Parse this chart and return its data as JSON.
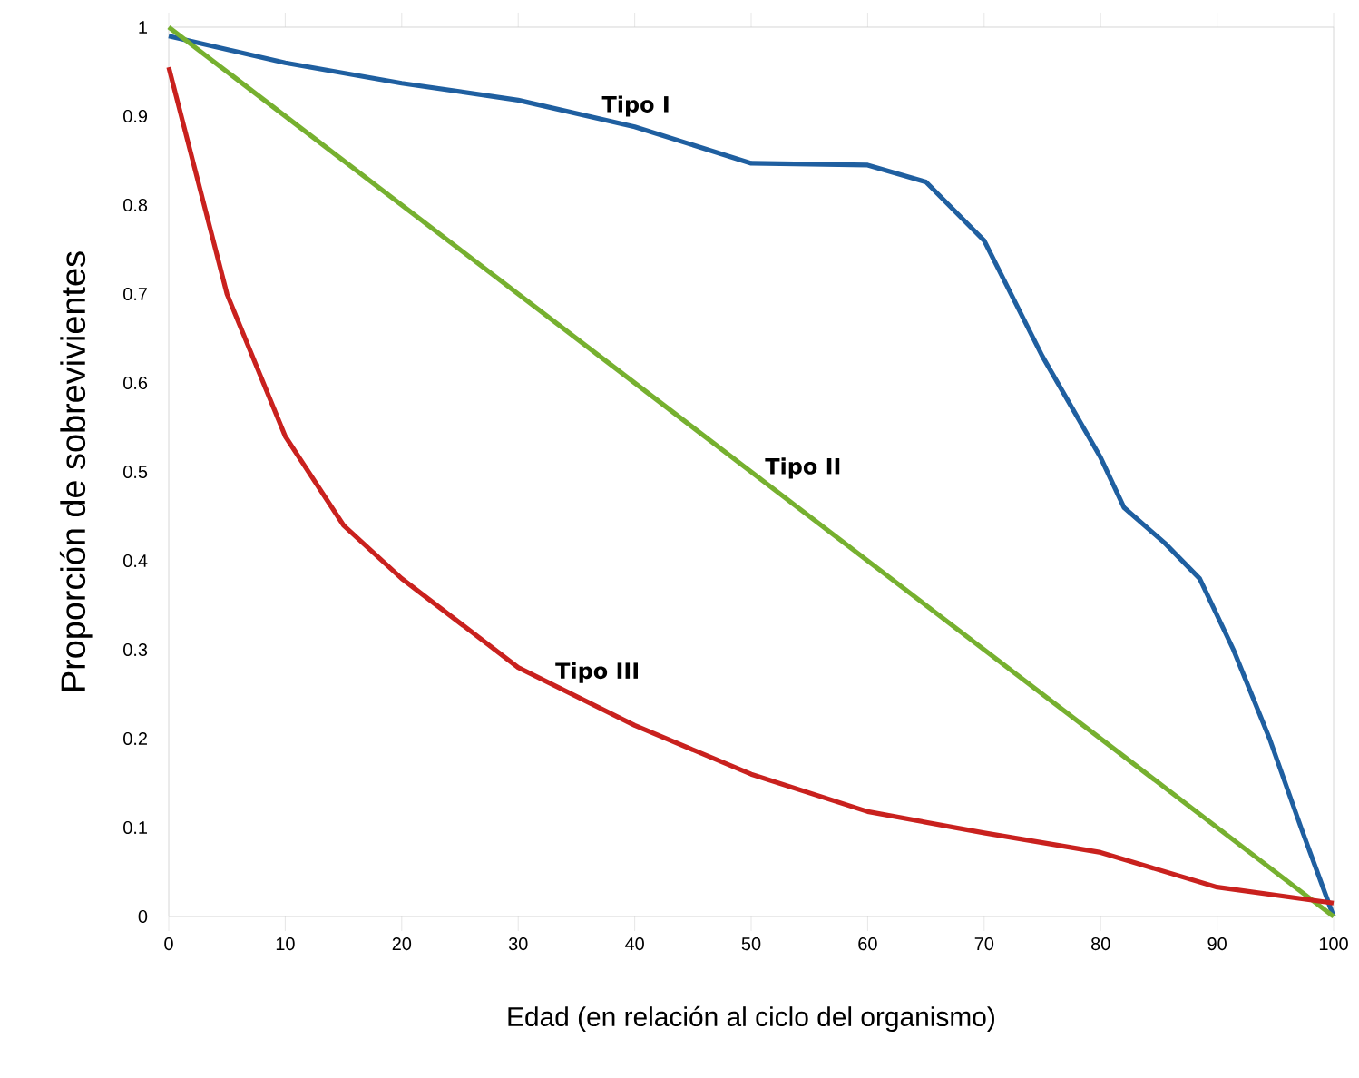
{
  "chart_data": {
    "type": "line",
    "xlabel": "Edad (en relación al ciclo del organismo)",
    "ylabel": "Proporción de sobrevivientes",
    "xlim": [
      0,
      100
    ],
    "ylim": [
      0,
      1
    ],
    "xticks": [
      0,
      10,
      20,
      30,
      40,
      50,
      60,
      70,
      80,
      90,
      100
    ],
    "yticks": [
      0,
      0.1,
      0.2,
      0.3,
      0.4,
      0.5,
      0.6,
      0.7,
      0.8,
      0.9,
      1
    ],
    "grid": false,
    "marker": "none",
    "line_style": "solid",
    "series": [
      {
        "color": "#1f5fa0",
        "x": [
          0,
          10,
          20,
          30,
          40,
          50,
          60,
          65,
          70,
          75,
          80,
          82,
          85.5,
          88.5,
          91.4,
          94.5,
          97.2,
          100
        ],
        "values": [
          0.99,
          0.96,
          0.937,
          0.918,
          0.888,
          0.847,
          0.845,
          0.826,
          0.76,
          0.63,
          0.516,
          0.46,
          0.42,
          0.38,
          0.3,
          0.2,
          0.1,
          0
        ]
      },
      {
        "color": "#76b02f",
        "x": [
          0,
          100
        ],
        "values": [
          1,
          0
        ]
      },
      {
        "color": "#c9211e",
        "x": [
          0,
          5,
          10,
          15,
          20,
          30,
          40,
          50,
          60,
          70,
          80,
          90,
          100
        ],
        "values": [
          0.955,
          0.7,
          0.54,
          0.44,
          0.38,
          0.28,
          0.215,
          0.16,
          0.118,
          0.094,
          0.072,
          0.033,
          0.015
        ]
      }
    ],
    "annotations": [
      {
        "text": "Tipo I",
        "x": 37,
        "y": 0.897
      },
      {
        "text": "Tipo II",
        "x": 51,
        "y": 0.49
      },
      {
        "text": "Tipo III",
        "x": 33,
        "y": 0.26
      }
    ]
  }
}
